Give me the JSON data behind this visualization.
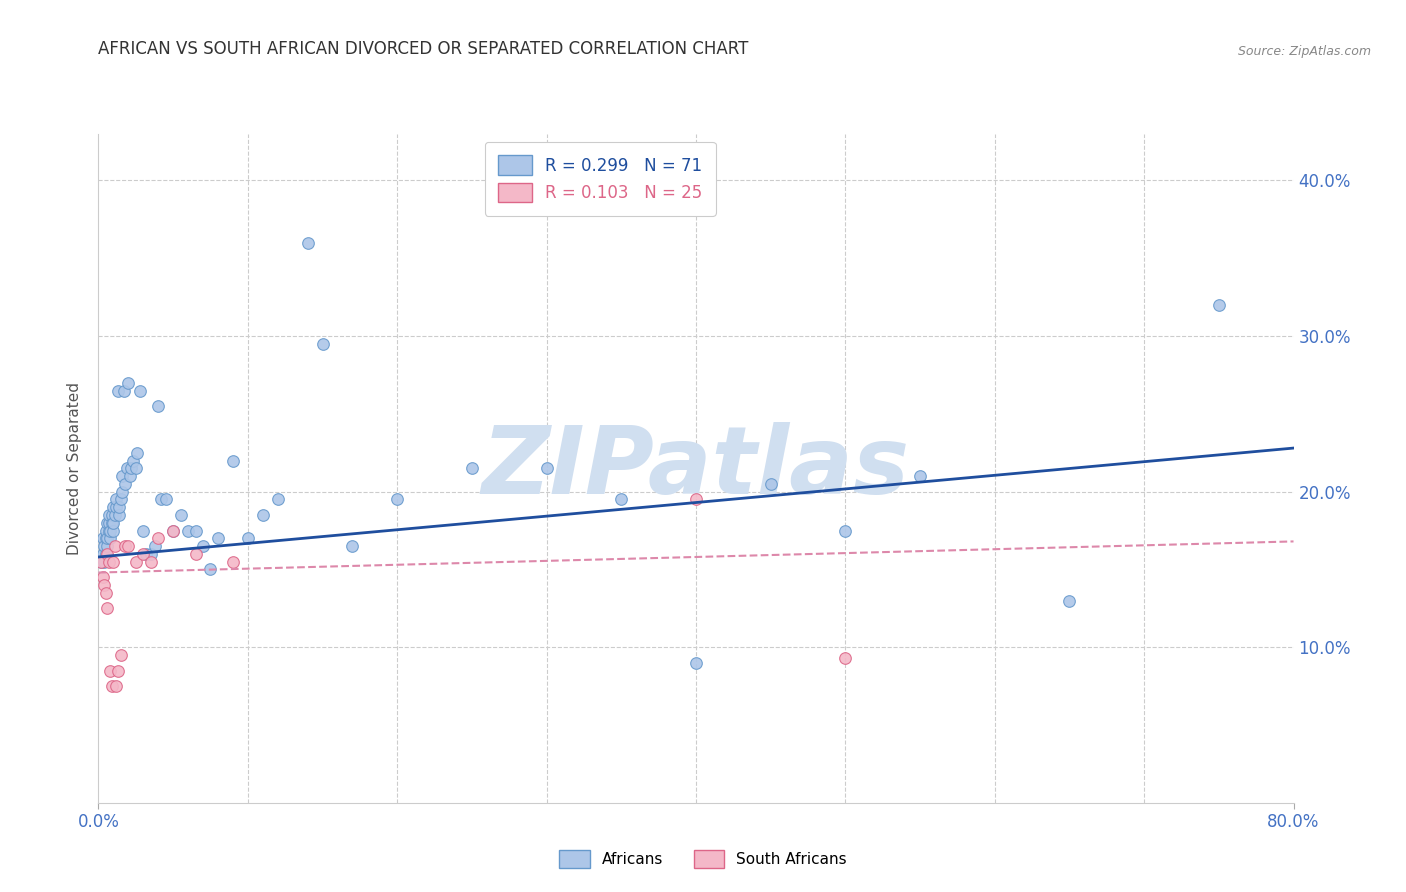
{
  "title": "AFRICAN VS SOUTH AFRICAN DIVORCED OR SEPARATED CORRELATION CHART",
  "source": "Source: ZipAtlas.com",
  "ylabel": "Divorced or Separated",
  "xlim": [
    0.0,
    0.8
  ],
  "ylim": [
    0.0,
    0.43
  ],
  "watermark": "ZIPatlas",
  "legend_line1": "R = 0.299   N = 71",
  "legend_line2": "R = 0.103   N = 25",
  "africans_x": [
    0.002,
    0.003,
    0.003,
    0.004,
    0.004,
    0.005,
    0.005,
    0.005,
    0.006,
    0.006,
    0.006,
    0.007,
    0.007,
    0.007,
    0.008,
    0.008,
    0.009,
    0.009,
    0.01,
    0.01,
    0.01,
    0.011,
    0.012,
    0.012,
    0.013,
    0.014,
    0.014,
    0.015,
    0.016,
    0.016,
    0.017,
    0.018,
    0.019,
    0.02,
    0.021,
    0.022,
    0.023,
    0.025,
    0.026,
    0.028,
    0.03,
    0.032,
    0.035,
    0.038,
    0.04,
    0.042,
    0.045,
    0.05,
    0.055,
    0.06,
    0.065,
    0.07,
    0.075,
    0.08,
    0.09,
    0.1,
    0.11,
    0.12,
    0.14,
    0.15,
    0.17,
    0.2,
    0.25,
    0.3,
    0.35,
    0.4,
    0.45,
    0.5,
    0.55,
    0.65,
    0.75
  ],
  "africans_y": [
    0.155,
    0.16,
    0.17,
    0.155,
    0.165,
    0.16,
    0.17,
    0.175,
    0.165,
    0.17,
    0.18,
    0.175,
    0.18,
    0.185,
    0.17,
    0.175,
    0.18,
    0.185,
    0.175,
    0.18,
    0.19,
    0.185,
    0.19,
    0.195,
    0.265,
    0.185,
    0.19,
    0.195,
    0.2,
    0.21,
    0.265,
    0.205,
    0.215,
    0.27,
    0.21,
    0.215,
    0.22,
    0.215,
    0.225,
    0.265,
    0.175,
    0.16,
    0.16,
    0.165,
    0.255,
    0.195,
    0.195,
    0.175,
    0.185,
    0.175,
    0.175,
    0.165,
    0.15,
    0.17,
    0.22,
    0.17,
    0.185,
    0.195,
    0.36,
    0.295,
    0.165,
    0.195,
    0.215,
    0.215,
    0.195,
    0.09,
    0.205,
    0.175,
    0.21,
    0.13,
    0.32
  ],
  "southafricans_x": [
    0.002,
    0.003,
    0.004,
    0.005,
    0.006,
    0.006,
    0.007,
    0.008,
    0.009,
    0.01,
    0.011,
    0.012,
    0.013,
    0.015,
    0.018,
    0.02,
    0.025,
    0.03,
    0.035,
    0.04,
    0.05,
    0.065,
    0.09,
    0.4,
    0.5
  ],
  "southafricans_y": [
    0.155,
    0.145,
    0.14,
    0.135,
    0.125,
    0.16,
    0.155,
    0.085,
    0.075,
    0.155,
    0.165,
    0.075,
    0.085,
    0.095,
    0.165,
    0.165,
    0.155,
    0.16,
    0.155,
    0.17,
    0.175,
    0.16,
    0.155,
    0.195,
    0.093
  ],
  "africans_trend_x": [
    0.0,
    0.8
  ],
  "africans_trend_y": [
    0.158,
    0.228
  ],
  "southafricans_trend_x": [
    0.0,
    0.8
  ],
  "southafricans_trend_y": [
    0.148,
    0.168
  ],
  "title_color": "#333333",
  "axis_tick_color": "#4472c4",
  "grid_color": "#cccccc",
  "africans_dot_facecolor": "#adc6e8",
  "africans_dot_edgecolor": "#6699cc",
  "southafricans_dot_facecolor": "#f4b8c8",
  "southafricans_dot_edgecolor": "#dd6688",
  "africans_line_color": "#1f4e9e",
  "southafricans_line_color": "#dd88aa",
  "legend_patch1_face": "#adc6e8",
  "legend_patch1_edge": "#6699cc",
  "legend_patch2_face": "#f4b8c8",
  "legend_patch2_edge": "#dd6688",
  "legend_text1_color": "#1f4e9e",
  "legend_text2_color": "#dd6688",
  "watermark_color": "#d0dff0",
  "background_color": "#ffffff",
  "source_color": "#888888"
}
